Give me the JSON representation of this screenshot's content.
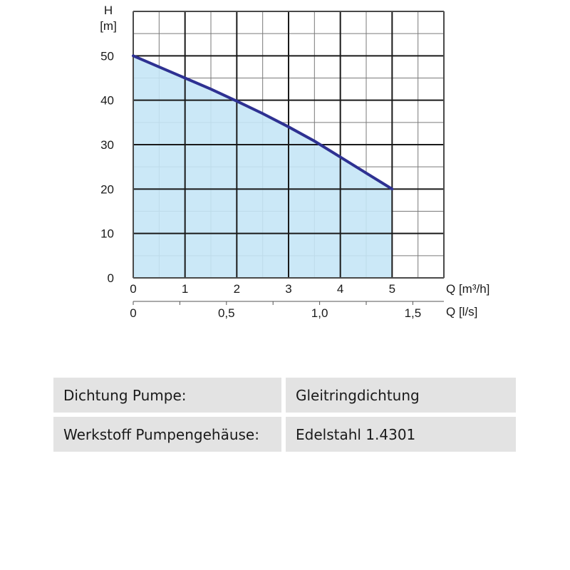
{
  "chart_data": {
    "type": "area",
    "ylabel": "H",
    "yunit": "[m]",
    "xlabel": "Q [m³/h]",
    "x2label": "Q [l/s]",
    "xlim": [
      0,
      6
    ],
    "ylim": [
      0,
      60
    ],
    "x_ticks": [
      "0",
      "1",
      "2",
      "3",
      "4",
      "5"
    ],
    "x_tick_values": [
      0,
      1,
      2,
      3,
      4,
      5
    ],
    "x2_ticks": [
      "0",
      "0,5",
      "1,0",
      "1,5"
    ],
    "x2_tick_values": [
      0,
      0.5,
      1.0,
      1.5
    ],
    "y_ticks": [
      "0",
      "10",
      "20",
      "30",
      "40",
      "50"
    ],
    "y_tick_values": [
      0,
      10,
      20,
      30,
      40,
      50
    ],
    "grid": true,
    "series": [
      {
        "x": [
          0,
          0.5,
          1,
          1.5,
          2,
          2.5,
          3,
          3.5,
          4,
          4.5,
          5
        ],
        "values": [
          50,
          47.5,
          45,
          42.5,
          39.8,
          37,
          34,
          30.8,
          27.2,
          23.6,
          20
        ]
      }
    ],
    "colors": {
      "line": "#2e3192",
      "fill": "#c5e6f6",
      "grid_major": "#1a1a1a",
      "grid_minor": "#7a7a7a"
    }
  },
  "specs": [
    {
      "label": "Dichtung Pumpe:",
      "value": "Gleitringdichtung"
    },
    {
      "label": "Werkstoff Pumpengehäuse:",
      "value": "Edelstahl 1.4301"
    }
  ]
}
